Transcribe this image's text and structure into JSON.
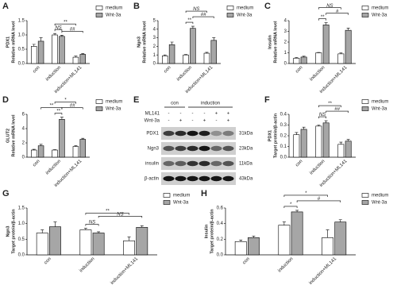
{
  "chart_data": [
    {
      "type": "bar",
      "label": "A",
      "ylabel": [
        "PDX1",
        "Relative mRNA level"
      ],
      "categories": [
        "con",
        "induction",
        "induction+ML141"
      ],
      "series": [
        {
          "name": "medium",
          "color": "#ffffff",
          "values": [
            0.6,
            1.0,
            0.22
          ],
          "errors": [
            0.07,
            0.05,
            0.04
          ]
        },
        {
          "name": "Wnt-3a",
          "color": "#a6a6a6",
          "values": [
            0.78,
            0.95,
            0.32
          ],
          "errors": [
            0.12,
            0.04,
            0.03
          ]
        }
      ],
      "ylim": [
        0,
        1.5
      ],
      "yticks": [
        {
          "value": 0,
          "label": "0.0"
        },
        0.5,
        {
          "value": 1,
          "label": "1.0"
        },
        1.5
      ],
      "annotations": [
        "**",
        "NS",
        "##"
      ]
    },
    {
      "type": "bar",
      "label": "B",
      "ylabel": [
        "Ngn3",
        "Relative mRNA level"
      ],
      "categories": [
        "con",
        "induction",
        "induction+ML141"
      ],
      "series": [
        {
          "name": "medium",
          "color": "#ffffff",
          "values": [
            0.9,
            1.0,
            1.2
          ],
          "errors": [
            0.1,
            0.05,
            0.1
          ]
        },
        {
          "name": "Wnt-3a",
          "color": "#a6a6a6",
          "values": [
            2.2,
            4.1,
            2.7
          ],
          "errors": [
            0.3,
            0.25,
            0.3
          ]
        }
      ],
      "ylim": [
        0,
        5
      ],
      "yticks": [
        0,
        1,
        2,
        3,
        4,
        5
      ],
      "annotations": [
        "NS",
        "**",
        "##"
      ]
    },
    {
      "type": "bar",
      "label": "C",
      "ylabel": [
        "Insulin",
        "Relative mRNA level"
      ],
      "categories": [
        "con",
        "induction",
        "induction+ML141"
      ],
      "series": [
        {
          "name": "medium",
          "color": "#ffffff",
          "values": [
            0.5,
            1.0,
            0.9
          ],
          "errors": [
            0.05,
            0.03,
            0.1
          ]
        },
        {
          "name": "Wnt-3a",
          "color": "#a6a6a6",
          "values": [
            0.6,
            3.6,
            3.1
          ],
          "errors": [
            0.08,
            0.2,
            0.2
          ]
        }
      ],
      "ylim": [
        0,
        4
      ],
      "yticks": [
        0,
        1,
        2,
        3,
        4
      ],
      "annotations": [
        "NS",
        "**",
        "#"
      ]
    },
    {
      "type": "bar",
      "label": "D",
      "ylabel": [
        "GLUT2",
        "Relative mRNA level"
      ],
      "categories": [
        "con",
        "induction",
        "induction+ML141"
      ],
      "series": [
        {
          "name": "medium",
          "color": "#ffffff",
          "values": [
            1.0,
            1.0,
            1.5
          ],
          "errors": [
            0.1,
            0.05,
            0.1
          ]
        },
        {
          "name": "Wnt-3a",
          "color": "#a6a6a6",
          "values": [
            1.6,
            5.3,
            2.5
          ],
          "errors": [
            0.2,
            0.3,
            0.15
          ]
        }
      ],
      "ylim": [
        0,
        6
      ],
      "yticks": [
        0,
        2,
        4,
        6
      ],
      "annotations": [
        "*",
        "**",
        "**",
        "##"
      ]
    },
    {
      "type": "bar",
      "label": "F",
      "ylabel": [
        "PDX1",
        "Target protein/β-actin"
      ],
      "categories": [
        "con",
        "induction",
        "induction+ML141"
      ],
      "series": [
        {
          "name": "medium",
          "color": "#ffffff",
          "values": [
            0.21,
            0.29,
            0.12
          ],
          "errors": [
            0.02,
            0.01,
            0.02
          ]
        },
        {
          "name": "Wnt-3a",
          "color": "#a6a6a6",
          "values": [
            0.26,
            0.32,
            0.15
          ],
          "errors": [
            0.02,
            0.02,
            0.015
          ]
        }
      ],
      "ylim": [
        0,
        0.4
      ],
      "yticks": [
        {
          "value": 0,
          "label": "0.0"
        },
        0.1,
        0.2,
        0.3,
        0.4
      ],
      "annotations": [
        "**",
        "NS",
        "##"
      ]
    },
    {
      "type": "bar",
      "label": "G",
      "ylabel": [
        "Ngn3",
        "Target protein/β-actin"
      ],
      "categories": [
        "con",
        "induction",
        "induction+ML141"
      ],
      "series": [
        {
          "name": "medium",
          "color": "#ffffff",
          "values": [
            0.7,
            0.8,
            0.45
          ],
          "errors": [
            0.1,
            0.05,
            0.12
          ]
        },
        {
          "name": "Wnt-3a",
          "color": "#a6a6a6",
          "values": [
            0.9,
            0.7,
            0.88
          ],
          "errors": [
            0.15,
            0.04,
            0.05
          ]
        }
      ],
      "ylim": [
        0,
        1.5
      ],
      "yticks": [
        {
          "value": 0,
          "label": "0.0"
        },
        0.5,
        {
          "value": 1,
          "label": "1.0"
        },
        1.5
      ],
      "annotations": [
        "**",
        "NS",
        "NS"
      ]
    },
    {
      "type": "bar",
      "label": "H",
      "ylabel": [
        "Insulin",
        "Target protein/β-actin"
      ],
      "categories": [
        "con",
        "induction",
        "induction+ML141"
      ],
      "series": [
        {
          "name": "medium",
          "color": "#ffffff",
          "values": [
            0.17,
            0.38,
            0.22
          ],
          "errors": [
            0.02,
            0.04,
            0.1
          ]
        },
        {
          "name": "Wnt-3a",
          "color": "#a6a6a6",
          "values": [
            0.22,
            0.55,
            0.42
          ],
          "errors": [
            0.02,
            0.02,
            0.03
          ]
        }
      ],
      "ylim": [
        0,
        0.6
      ],
      "yticks": [
        {
          "value": 0,
          "label": "0.0"
        },
        0.2,
        0.4,
        0.6
      ],
      "annotations": [
        "*",
        "*",
        "#"
      ]
    }
  ],
  "blot": {
    "label": "E",
    "column_groups": [
      "con",
      "induction"
    ],
    "treatments": [
      {
        "name": "ML141",
        "signs": [
          "-",
          "-",
          "-",
          "-",
          "+",
          "+"
        ]
      },
      {
        "name": "Wnt-3a",
        "signs": [
          "-",
          "+",
          "-",
          "+",
          "-",
          "+"
        ]
      }
    ],
    "bands": [
      {
        "name": "PDX1",
        "size": "31kDa"
      },
      {
        "name": "Ngn3",
        "size": "23kDa"
      },
      {
        "name": "insulin",
        "size": "11kDa"
      },
      {
        "name": "β-actin",
        "size": "43kDa"
      }
    ]
  }
}
